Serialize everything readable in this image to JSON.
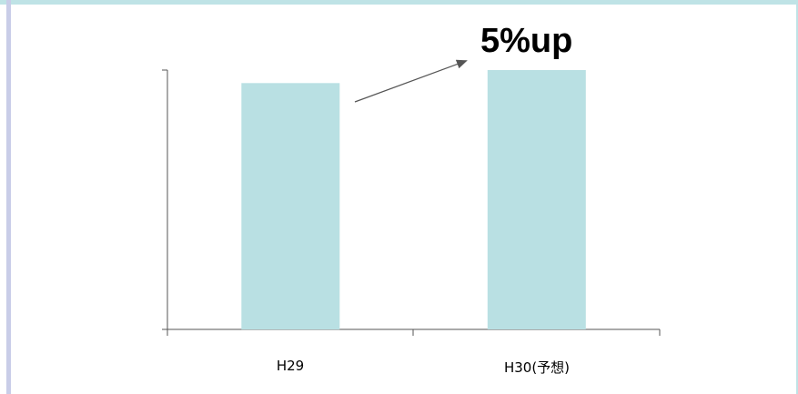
{
  "chart_data": {
    "type": "bar",
    "categories": [
      "H29",
      "H30(予想)"
    ],
    "values": [
      95,
      100
    ],
    "ylim": [
      0,
      100
    ],
    "bar_color": "#b9e0e3",
    "annotation": "5%up",
    "grid": false,
    "legend": "none"
  },
  "colors": {
    "accent": "#bfe3e6",
    "left_stripe": "#c9cde8",
    "axis": "#555555",
    "arrow": "#555555"
  }
}
